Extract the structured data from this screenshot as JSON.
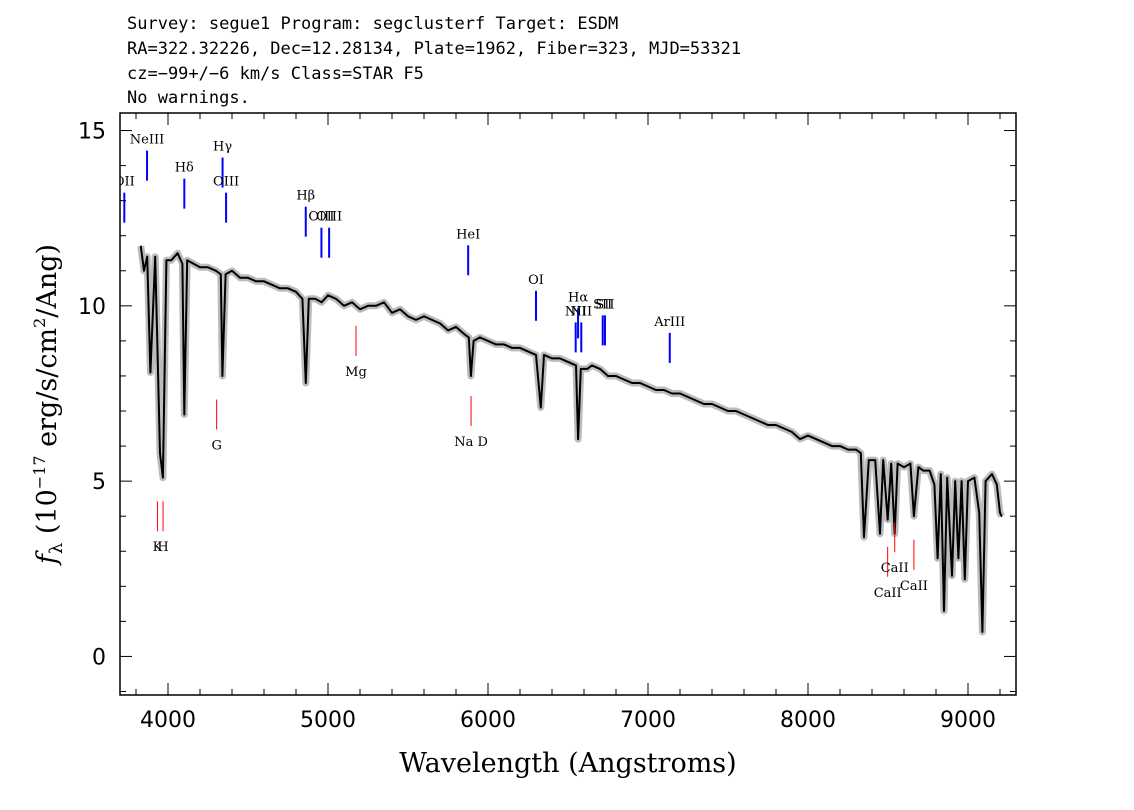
{
  "header": {
    "line1": "Survey: segue1 Program: segclusterf Target: ESDM",
    "line2": "RA=322.32226, Dec=12.28134, Plate=1962, Fiber=323, MJD=53321",
    "line3": "cz=−99+/−6 km/s Class=STAR F5",
    "line4": "No warnings."
  },
  "chart_data": {
    "type": "line",
    "title": "",
    "xlabel": "Wavelength (Angstroms)",
    "ylabel": "f_λ (10^-17 erg/s/cm^2/Ang)",
    "xlim": [
      3700,
      9300
    ],
    "ylim": [
      -1.1,
      15.5
    ],
    "x_ticks": [
      4000,
      5000,
      6000,
      7000,
      8000,
      9000
    ],
    "y_ticks": [
      0,
      5,
      10,
      15
    ],
    "grid": false,
    "series": [
      {
        "color": "#000000",
        "x": [
          3830,
          3850,
          3870,
          3890,
          3920,
          3950,
          3968,
          3990,
          4020,
          4060,
          4090,
          4102,
          4120,
          4160,
          4200,
          4250,
          4300,
          4330,
          4340,
          4360,
          4400,
          4450,
          4500,
          4550,
          4600,
          4650,
          4700,
          4750,
          4800,
          4840,
          4861,
          4880,
          4920,
          4960,
          5000,
          5050,
          5100,
          5150,
          5200,
          5250,
          5300,
          5350,
          5400,
          5450,
          5500,
          5550,
          5600,
          5650,
          5700,
          5750,
          5800,
          5850,
          5880,
          5893,
          5910,
          5950,
          6000,
          6050,
          6100,
          6150,
          6200,
          6250,
          6300,
          6330,
          6350,
          6400,
          6450,
          6500,
          6550,
          6563,
          6580,
          6620,
          6650,
          6700,
          6750,
          6800,
          6850,
          6900,
          6950,
          7000,
          7050,
          7100,
          7150,
          7200,
          7250,
          7300,
          7350,
          7400,
          7450,
          7500,
          7550,
          7600,
          7650,
          7700,
          7750,
          7800,
          7850,
          7900,
          7950,
          8000,
          8050,
          8100,
          8150,
          8200,
          8250,
          8300,
          8330,
          8350,
          8380,
          8420,
          8450,
          8470,
          8498,
          8520,
          8542,
          8560,
          8600,
          8640,
          8662,
          8690,
          8720,
          8760,
          8790,
          8810,
          8830,
          8850,
          8870,
          8900,
          8920,
          8940,
          8960,
          8980,
          9000,
          9040,
          9070,
          9090,
          9110,
          9150,
          9180,
          9200,
          9210
        ],
        "y": [
          11.7,
          11.0,
          11.4,
          8.1,
          11.4,
          5.8,
          5.1,
          11.3,
          11.3,
          11.5,
          11.2,
          6.9,
          11.3,
          11.2,
          11.1,
          11.1,
          11.0,
          10.9,
          8.0,
          10.9,
          11.0,
          10.8,
          10.8,
          10.7,
          10.7,
          10.6,
          10.5,
          10.5,
          10.4,
          10.2,
          7.8,
          10.2,
          10.2,
          10.1,
          10.3,
          10.2,
          10.0,
          10.1,
          9.9,
          10.0,
          10.0,
          10.1,
          9.8,
          9.9,
          9.7,
          9.6,
          9.7,
          9.6,
          9.5,
          9.3,
          9.4,
          9.2,
          9.1,
          8.0,
          9.0,
          9.1,
          9.0,
          8.9,
          8.9,
          8.8,
          8.8,
          8.7,
          8.6,
          7.1,
          8.6,
          8.5,
          8.5,
          8.4,
          8.3,
          6.2,
          8.2,
          8.2,
          8.3,
          8.2,
          8.0,
          8.0,
          7.9,
          7.8,
          7.8,
          7.7,
          7.6,
          7.6,
          7.5,
          7.5,
          7.4,
          7.3,
          7.2,
          7.2,
          7.1,
          7.0,
          7.0,
          6.9,
          6.8,
          6.7,
          6.6,
          6.6,
          6.5,
          6.4,
          6.2,
          6.3,
          6.2,
          6.1,
          6.0,
          6.0,
          5.9,
          5.9,
          5.8,
          3.4,
          5.6,
          5.6,
          3.5,
          5.6,
          3.9,
          5.5,
          3.5,
          5.5,
          5.4,
          5.5,
          4.0,
          5.4,
          5.3,
          5.3,
          4.9,
          2.8,
          5.2,
          1.3,
          5.1,
          2.3,
          5.0,
          2.8,
          5.0,
          2.2,
          5.0,
          5.1,
          4.1,
          0.7,
          5.0,
          5.2,
          4.9,
          4.1,
          4.0
        ]
      }
    ],
    "emission_lines": [
      {
        "label": "OII",
        "wave": 3727,
        "y": 12.8
      },
      {
        "label": "NeIII",
        "wave": 3869,
        "y": 14.0
      },
      {
        "label": "Hδ",
        "wave": 4102,
        "y": 13.2
      },
      {
        "label": "Hγ",
        "wave": 4341,
        "y": 13.8
      },
      {
        "label": "OIII",
        "wave": 4363,
        "y": 12.8
      },
      {
        "label": "Hβ",
        "wave": 4861,
        "y": 12.4
      },
      {
        "label": "OIII",
        "wave": 4959,
        "y": 11.8
      },
      {
        "label": "OIII",
        "wave": 5007,
        "y": 11.8
      },
      {
        "label": "HeI",
        "wave": 5876,
        "y": 11.3
      },
      {
        "label": "OI",
        "wave": 6300,
        "y": 10.0
      },
      {
        "label": "NII",
        "wave": 6548,
        "y": 9.1
      },
      {
        "label": "Hα",
        "wave": 6563,
        "y": 9.5
      },
      {
        "label": "NII",
        "wave": 6583,
        "y": 9.1
      },
      {
        "label": "SII",
        "wave": 6717,
        "y": 9.3
      },
      {
        "label": "SII",
        "wave": 6731,
        "y": 9.3
      },
      {
        "label": "ArIII",
        "wave": 7136,
        "y": 8.8
      }
    ],
    "absorption_lines": [
      {
        "label": "K",
        "wave": 3934,
        "y": 4.0
      },
      {
        "label": "H",
        "wave": 3969,
        "y": 4.0
      },
      {
        "label": "G",
        "wave": 4304,
        "y": 6.9
      },
      {
        "label": "Mg",
        "wave": 5175,
        "y": 9.0
      },
      {
        "label": "Na D",
        "wave": 5894,
        "y": 7.0
      },
      {
        "label": "CaII",
        "wave": 8498,
        "y": 2.7
      },
      {
        "label": "CaII",
        "wave": 8542,
        "y": 3.4
      },
      {
        "label": "CaII",
        "wave": 8662,
        "y": 2.9
      }
    ],
    "colors": {
      "flux": "#000000",
      "noise_band": "#bcbcbc",
      "emission": "#0000ff",
      "absorption": "#ff0000"
    }
  }
}
